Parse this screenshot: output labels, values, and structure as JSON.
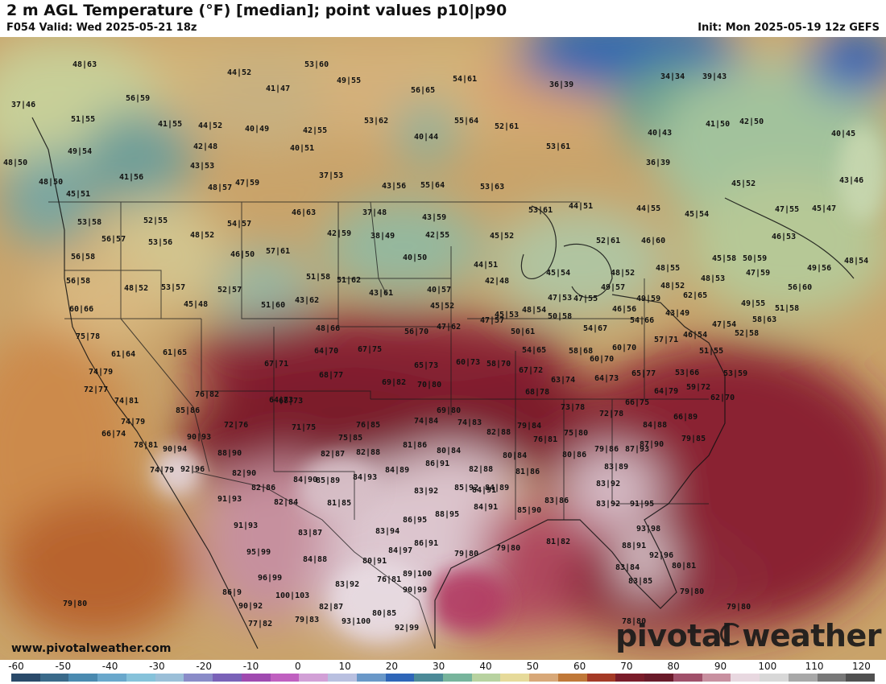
{
  "header": {
    "title": "2 m AGL Temperature (°F) [median]; point values p10|p90",
    "valid": "F054 Valid: Wed 2025-05-21 18z",
    "init": "Init: Mon 2025-05-19 12z GEFS"
  },
  "footer": {
    "website": "www.pivotalweather.com",
    "brand": "pivotal weather"
  },
  "legend": {
    "ticks": [
      "-60",
      "-50",
      "-40",
      "-30",
      "-20",
      "-10",
      "0",
      "10",
      "20",
      "30",
      "40",
      "50",
      "60",
      "70",
      "80",
      "90",
      "100",
      "110",
      "120"
    ],
    "colors": [
      "#2a4a6a",
      "#3a6a8a",
      "#4a8ab0",
      "#6aa8cc",
      "#86c2da",
      "#9bbfd8",
      "#8a8cc8",
      "#7a62b8",
      "#a04ab0",
      "#c060c0",
      "#d2a0d6",
      "#b9c0e0",
      "#6a98c8",
      "#2f66b8",
      "#4c8a98",
      "#77b49c",
      "#b8d2a0",
      "#e6da9a",
      "#d8a878",
      "#c07838",
      "#a43a26",
      "#7a1c2a",
      "#6a1a2a",
      "#a0506a",
      "#c890a0",
      "#e8d8e0",
      "#d8d8d8",
      "#a8a8a8",
      "#787878",
      "#505050"
    ]
  },
  "map": {
    "points": [
      {
        "text": "48|63"
      },
      {
        "text": "44|52"
      },
      {
        "text": "53|60"
      },
      {
        "text": "49|55"
      },
      {
        "text": "54|61"
      },
      {
        "text": "36|39"
      },
      {
        "text": "34|34"
      },
      {
        "text": "39|43"
      },
      {
        "text": "37|46"
      },
      {
        "text": "56|59"
      },
      {
        "text": "41|47"
      },
      {
        "text": "56|65"
      },
      {
        "text": "51|55"
      },
      {
        "text": "41|55"
      },
      {
        "text": "44|52"
      },
      {
        "text": "40|49"
      },
      {
        "text": "42|55"
      },
      {
        "text": "53|62"
      },
      {
        "text": "55|64"
      },
      {
        "text": "52|61"
      },
      {
        "text": "40|43"
      },
      {
        "text": "41|50"
      },
      {
        "text": "42|50"
      },
      {
        "text": "40|45"
      },
      {
        "text": "49|54"
      },
      {
        "text": "42|48"
      },
      {
        "text": "40|51"
      },
      {
        "text": "40|44"
      },
      {
        "text": "53|61"
      },
      {
        "text": "48|50"
      },
      {
        "text": "43|53"
      },
      {
        "text": "36|39"
      },
      {
        "text": "41|56"
      },
      {
        "text": "37|53"
      },
      {
        "text": "48|50"
      },
      {
        "text": "47|59"
      },
      {
        "text": "48|57"
      },
      {
        "text": "43|56"
      },
      {
        "text": "55|64"
      },
      {
        "text": "53|63"
      },
      {
        "text": "45|52"
      },
      {
        "text": "43|46"
      },
      {
        "text": "45|51"
      },
      {
        "text": "53|61"
      },
      {
        "text": "52|55"
      },
      {
        "text": "46|63"
      },
      {
        "text": "37|48"
      },
      {
        "text": "43|59"
      },
      {
        "text": "53|58"
      },
      {
        "text": "44|51"
      },
      {
        "text": "44|55"
      },
      {
        "text": "45|54"
      },
      {
        "text": "47|55"
      },
      {
        "text": "45|47"
      },
      {
        "text": "56|57"
      },
      {
        "text": "53|56"
      },
      {
        "text": "48|52"
      },
      {
        "text": "54|57"
      },
      {
        "text": "42|59"
      },
      {
        "text": "38|49"
      },
      {
        "text": "42|55"
      },
      {
        "text": "45|52"
      },
      {
        "text": "46|53"
      },
      {
        "text": "56|58"
      },
      {
        "text": "46|50"
      },
      {
        "text": "57|61"
      },
      {
        "text": "40|50"
      },
      {
        "text": "52|61"
      },
      {
        "text": "46|60"
      },
      {
        "text": "44|51"
      },
      {
        "text": "45|58"
      },
      {
        "text": "50|59"
      },
      {
        "text": "48|54"
      },
      {
        "text": "45|54"
      },
      {
        "text": "48|55"
      },
      {
        "text": "47|59"
      },
      {
        "text": "49|56"
      },
      {
        "text": "56|58"
      },
      {
        "text": "48|52"
      },
      {
        "text": "53|57"
      },
      {
        "text": "52|57"
      },
      {
        "text": "51|58"
      },
      {
        "text": "51|62"
      },
      {
        "text": "40|57"
      },
      {
        "text": "42|48"
      },
      {
        "text": "48|52"
      },
      {
        "text": "48|52"
      },
      {
        "text": "48|53"
      },
      {
        "text": "56|60"
      },
      {
        "text": "45|48"
      },
      {
        "text": "51|60"
      },
      {
        "text": "43|62"
      },
      {
        "text": "43|61"
      },
      {
        "text": "45|52"
      },
      {
        "text": "47|53"
      },
      {
        "text": "47|55"
      },
      {
        "text": "49|57"
      },
      {
        "text": "49|59"
      },
      {
        "text": "62|65"
      },
      {
        "text": "60|66"
      },
      {
        "text": "48|66"
      },
      {
        "text": "47|62"
      },
      {
        "text": "47|57"
      },
      {
        "text": "45|53"
      },
      {
        "text": "48|54"
      },
      {
        "text": "50|58"
      },
      {
        "text": "46|56"
      },
      {
        "text": "43|49"
      },
      {
        "text": "47|54"
      },
      {
        "text": "49|55"
      },
      {
        "text": "51|58"
      },
      {
        "text": "58|63"
      },
      {
        "text": "56|70"
      },
      {
        "text": "50|61"
      },
      {
        "text": "54|67"
      },
      {
        "text": "54|66"
      },
      {
        "text": "46|54"
      },
      {
        "text": "52|58"
      },
      {
        "text": "75|78"
      },
      {
        "text": "61|64"
      },
      {
        "text": "61|65"
      },
      {
        "text": "64|70"
      },
      {
        "text": "67|75"
      },
      {
        "text": "54|65"
      },
      {
        "text": "58|68"
      },
      {
        "text": "60|70"
      },
      {
        "text": "57|71"
      },
      {
        "text": "67|71"
      },
      {
        "text": "65|73"
      },
      {
        "text": "60|73"
      },
      {
        "text": "58|70"
      },
      {
        "text": "60|70"
      },
      {
        "text": "51|55"
      },
      {
        "text": "74|79"
      },
      {
        "text": "68|77"
      },
      {
        "text": "69|82"
      },
      {
        "text": "70|80"
      },
      {
        "text": "67|72"
      },
      {
        "text": "63|74"
      },
      {
        "text": "64|73"
      },
      {
        "text": "65|77"
      },
      {
        "text": "53|66"
      },
      {
        "text": "53|59"
      },
      {
        "text": "72|77"
      },
      {
        "text": "76|82"
      },
      {
        "text": "64|73"
      },
      {
        "text": "68|78"
      },
      {
        "text": "64|79"
      },
      {
        "text": "59|72"
      },
      {
        "text": "74|81"
      },
      {
        "text": "68|73"
      },
      {
        "text": "66|75"
      },
      {
        "text": "62|70"
      },
      {
        "text": "85|86"
      },
      {
        "text": "69|80"
      },
      {
        "text": "73|78"
      },
      {
        "text": "72|78"
      },
      {
        "text": "74|79"
      },
      {
        "text": "72|76"
      },
      {
        "text": "71|75"
      },
      {
        "text": "76|85"
      },
      {
        "text": "74|84"
      },
      {
        "text": "74|83"
      },
      {
        "text": "79|84"
      },
      {
        "text": "84|88"
      },
      {
        "text": "66|89"
      },
      {
        "text": "66|74"
      },
      {
        "text": "90|93"
      },
      {
        "text": "75|85"
      },
      {
        "text": "82|88"
      },
      {
        "text": "75|80"
      },
      {
        "text": "78|81"
      },
      {
        "text": "90|94"
      },
      {
        "text": "81|86"
      },
      {
        "text": "76|81"
      },
      {
        "text": "79|86"
      },
      {
        "text": "87|90"
      },
      {
        "text": "79|85"
      },
      {
        "text": "74|79"
      },
      {
        "text": "92|96"
      },
      {
        "text": "88|90"
      },
      {
        "text": "82|87"
      },
      {
        "text": "82|88"
      },
      {
        "text": "80|84"
      },
      {
        "text": "80|84"
      },
      {
        "text": "80|86"
      },
      {
        "text": "87|93"
      },
      {
        "text": "85|89"
      },
      {
        "text": "82|90"
      },
      {
        "text": "84|89"
      },
      {
        "text": "86|91"
      },
      {
        "text": "82|88"
      },
      {
        "text": "83|89"
      },
      {
        "text": "84|90"
      },
      {
        "text": "84|93"
      },
      {
        "text": "81|86"
      },
      {
        "text": "84|91"
      },
      {
        "text": "82|86"
      },
      {
        "text": "83|92"
      },
      {
        "text": "85|92"
      },
      {
        "text": "84|89"
      },
      {
        "text": "83|92"
      },
      {
        "text": "91|93"
      },
      {
        "text": "82|84"
      },
      {
        "text": "81|85"
      },
      {
        "text": "84|91"
      },
      {
        "text": "83|86"
      },
      {
        "text": "83|92"
      },
      {
        "text": "91|95"
      },
      {
        "text": "85|90"
      },
      {
        "text": "88|95"
      },
      {
        "text": "86|95"
      },
      {
        "text": "91|93"
      },
      {
        "text": "83|87"
      },
      {
        "text": "83|94"
      },
      {
        "text": "93|98"
      },
      {
        "text": "86|91"
      },
      {
        "text": "79|80"
      },
      {
        "text": "79|80"
      },
      {
        "text": "81|82"
      },
      {
        "text": "88|91"
      },
      {
        "text": "95|99"
      },
      {
        "text": "84|88"
      },
      {
        "text": "84|97"
      },
      {
        "text": "92|96"
      },
      {
        "text": "80|91"
      },
      {
        "text": "89|100"
      },
      {
        "text": "83|84"
      },
      {
        "text": "80|81"
      },
      {
        "text": "96|99"
      },
      {
        "text": "83|92"
      },
      {
        "text": "76|81"
      },
      {
        "text": "83|85"
      },
      {
        "text": "86|9"
      },
      {
        "text": "100|103"
      },
      {
        "text": "90|99"
      },
      {
        "text": "79|80"
      },
      {
        "text": "90|92"
      },
      {
        "text": "82|87"
      },
      {
        "text": "80|85"
      },
      {
        "text": "79|80"
      },
      {
        "text": "79|80"
      },
      {
        "text": "79|83"
      },
      {
        "text": "93|100"
      },
      {
        "text": "92|99"
      },
      {
        "text": "78|80"
      },
      {
        "text": "77|82"
      }
    ]
  }
}
